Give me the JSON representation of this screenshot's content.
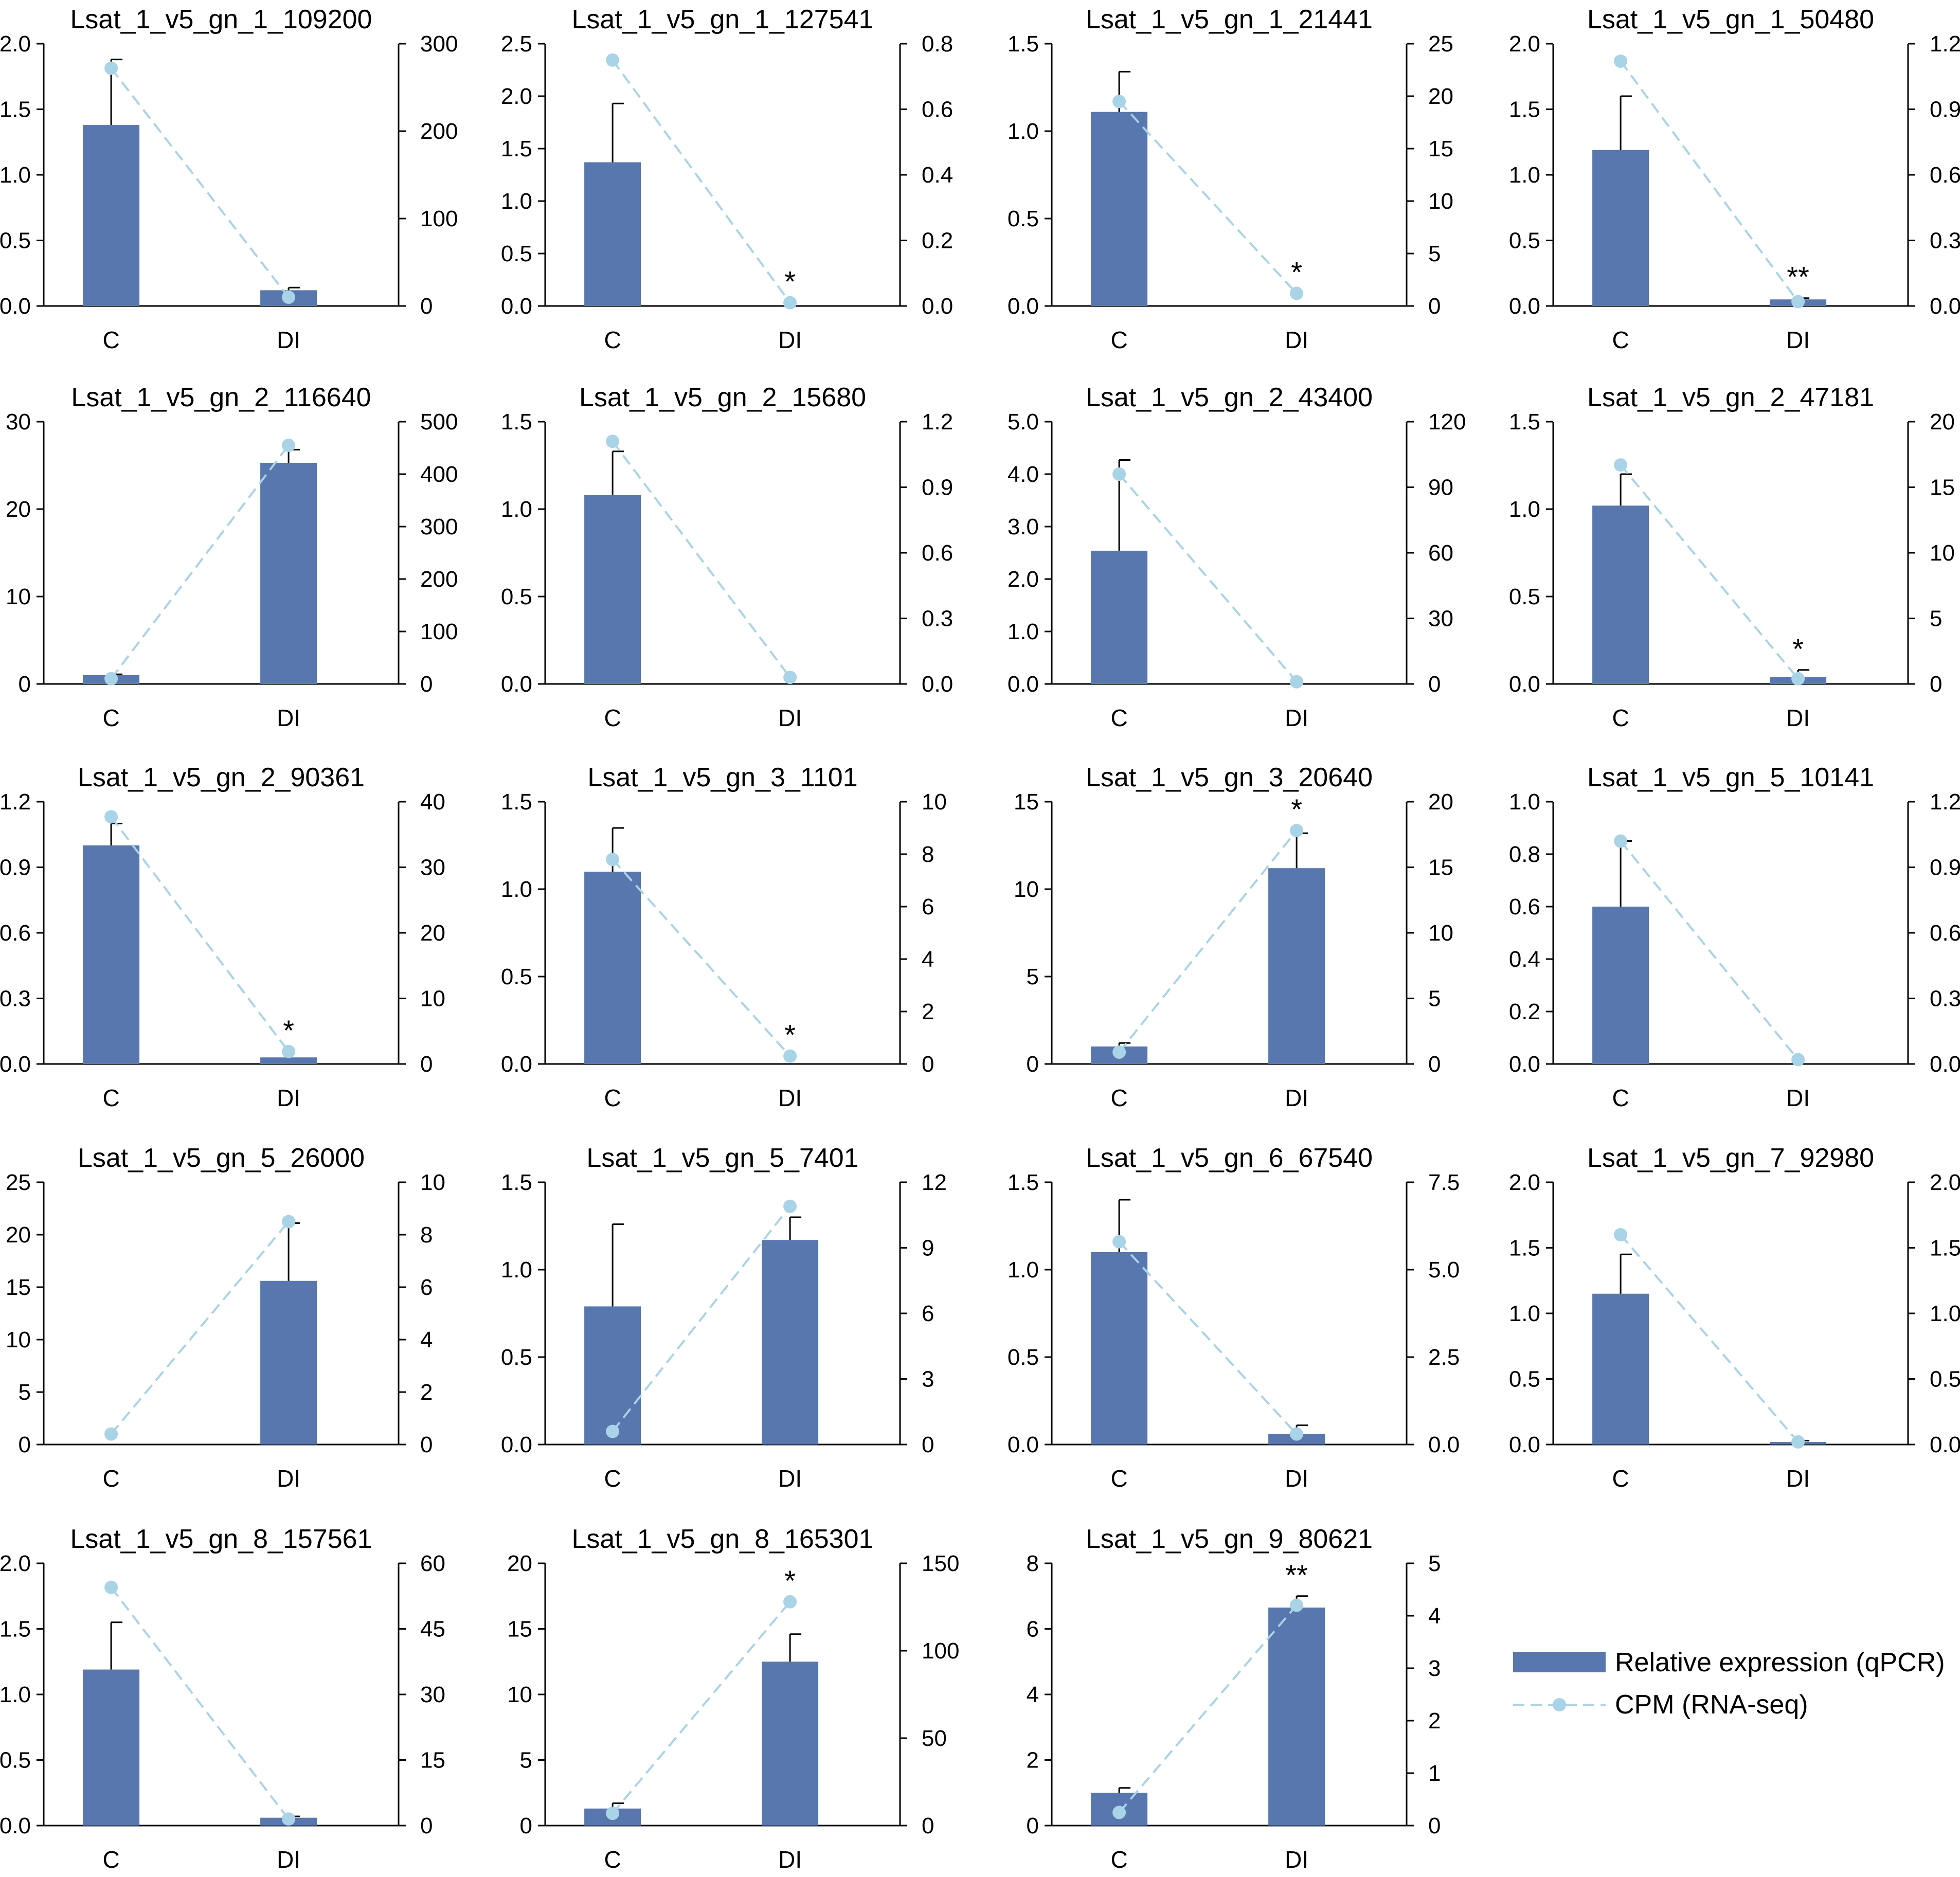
{
  "figure": {
    "categories": [
      "C",
      "DI"
    ],
    "colors": {
      "bar": "#5877AE",
      "line": "#A9D3E7",
      "axis": "#000000",
      "text": "#000000"
    },
    "legend": {
      "bar_label": "Relative expression (qPCR)",
      "line_label": "CPM (RNA-seq)"
    }
  },
  "chart_data": [
    {
      "type": "bar+line",
      "title": "Lsat_1_v5_gn_1_109200",
      "categories": [
        "C",
        "DI"
      ],
      "series": [
        {
          "name": "Relative expression (qPCR)",
          "axis": "left",
          "values": [
            1.38,
            0.12
          ],
          "errors": [
            0.5,
            0.02
          ]
        },
        {
          "name": "CPM (RNA-seq)",
          "axis": "right",
          "values": [
            272,
            10
          ]
        }
      ],
      "annotations": [
        "",
        ""
      ],
      "ylim_left": [
        0,
        2.0
      ],
      "yticks_left": [
        "0.0",
        "0.5",
        "1.0",
        "1.5",
        "2.0"
      ],
      "ylim_right": [
        0,
        300
      ],
      "yticks_right": [
        "0",
        "100",
        "200",
        "300"
      ]
    },
    {
      "type": "bar+line",
      "title": "Lsat_1_v5_gn_1_127541",
      "categories": [
        "C",
        "DI"
      ],
      "series": [
        {
          "name": "Relative expression (qPCR)",
          "axis": "left",
          "values": [
            1.37,
            0.0
          ],
          "errors": [
            0.56,
            0.0
          ]
        },
        {
          "name": "CPM (RNA-seq)",
          "axis": "right",
          "values": [
            0.75,
            0.01
          ]
        }
      ],
      "annotations": [
        "",
        "*"
      ],
      "ylim_left": [
        0,
        2.5
      ],
      "yticks_left": [
        "0.0",
        "0.5",
        "1.0",
        "1.5",
        "2.0",
        "2.5"
      ],
      "ylim_right": [
        0,
        0.8
      ],
      "yticks_right": [
        "0.0",
        "0.2",
        "0.4",
        "0.6",
        "0.8"
      ]
    },
    {
      "type": "bar+line",
      "title": "Lsat_1_v5_gn_1_21441",
      "categories": [
        "C",
        "DI"
      ],
      "series": [
        {
          "name": "Relative expression (qPCR)",
          "axis": "left",
          "values": [
            1.11,
            0.0
          ],
          "errors": [
            0.23,
            0.0
          ]
        },
        {
          "name": "CPM (RNA-seq)",
          "axis": "right",
          "values": [
            19.5,
            1.2
          ]
        }
      ],
      "annotations": [
        "",
        "*"
      ],
      "ylim_left": [
        0,
        1.5
      ],
      "yticks_left": [
        "0.0",
        "0.5",
        "1.0",
        "1.5"
      ],
      "ylim_right": [
        0,
        25
      ],
      "yticks_right": [
        "0",
        "5",
        "10",
        "15",
        "20",
        "25"
      ]
    },
    {
      "type": "bar+line",
      "title": "Lsat_1_v5_gn_1_50480",
      "categories": [
        "C",
        "DI"
      ],
      "series": [
        {
          "name": "Relative expression (qPCR)",
          "axis": "left",
          "values": [
            1.19,
            0.05
          ],
          "errors": [
            0.41,
            0.01
          ]
        },
        {
          "name": "CPM (RNA-seq)",
          "axis": "right",
          "values": [
            1.12,
            0.02
          ]
        }
      ],
      "annotations": [
        "",
        "**"
      ],
      "ylim_left": [
        0,
        2.0
      ],
      "yticks_left": [
        "0.0",
        "0.5",
        "1.0",
        "1.5",
        "2.0"
      ],
      "ylim_right": [
        0,
        1.2
      ],
      "yticks_right": [
        "0.0",
        "0.3",
        "0.6",
        "0.9",
        "1.2"
      ]
    },
    {
      "type": "bar+line",
      "title": "Lsat_1_v5_gn_2_116640",
      "categories": [
        "C",
        "DI"
      ],
      "series": [
        {
          "name": "Relative expression (qPCR)",
          "axis": "left",
          "values": [
            1.0,
            25.3
          ],
          "errors": [
            0.1,
            1.5
          ]
        },
        {
          "name": "CPM (RNA-seq)",
          "axis": "right",
          "values": [
            10,
            455
          ]
        }
      ],
      "annotations": [
        "",
        ""
      ],
      "ylim_left": [
        0,
        30
      ],
      "yticks_left": [
        "0",
        "10",
        "20",
        "30"
      ],
      "ylim_right": [
        0,
        500
      ],
      "yticks_right": [
        "0",
        "100",
        "200",
        "300",
        "400",
        "500"
      ]
    },
    {
      "type": "bar+line",
      "title": "Lsat_1_v5_gn_2_15680",
      "categories": [
        "C",
        "DI"
      ],
      "series": [
        {
          "name": "Relative expression (qPCR)",
          "axis": "left",
          "values": [
            1.08,
            0.0
          ],
          "errors": [
            0.25,
            0.0
          ]
        },
        {
          "name": "CPM (RNA-seq)",
          "axis": "right",
          "values": [
            1.11,
            0.03
          ]
        }
      ],
      "annotations": [
        "",
        ""
      ],
      "ylim_left": [
        0,
        1.5
      ],
      "yticks_left": [
        "0.0",
        "0.5",
        "1.0",
        "1.5"
      ],
      "ylim_right": [
        0,
        1.2
      ],
      "yticks_right": [
        "0.0",
        "0.3",
        "0.6",
        "0.9",
        "1.2"
      ]
    },
    {
      "type": "bar+line",
      "title": "Lsat_1_v5_gn_2_43400",
      "categories": [
        "C",
        "DI"
      ],
      "series": [
        {
          "name": "Relative expression (qPCR)",
          "axis": "left",
          "values": [
            2.54,
            0.0
          ],
          "errors": [
            1.73,
            0.0
          ]
        },
        {
          "name": "CPM (RNA-seq)",
          "axis": "right",
          "values": [
            96,
            1
          ]
        }
      ],
      "annotations": [
        "",
        ""
      ],
      "ylim_left": [
        0,
        5.0
      ],
      "yticks_left": [
        "0.0",
        "1.0",
        "2.0",
        "3.0",
        "4.0",
        "5.0"
      ],
      "ylim_right": [
        0,
        120
      ],
      "yticks_right": [
        "0",
        "30",
        "60",
        "90",
        "120"
      ]
    },
    {
      "type": "bar+line",
      "title": "Lsat_1_v5_gn_2_47181",
      "categories": [
        "C",
        "DI"
      ],
      "series": [
        {
          "name": "Relative expression (qPCR)",
          "axis": "left",
          "values": [
            1.02,
            0.04
          ],
          "errors": [
            0.18,
            0.04
          ]
        },
        {
          "name": "CPM (RNA-seq)",
          "axis": "right",
          "values": [
            16.7,
            0.4
          ]
        }
      ],
      "annotations": [
        "",
        "*"
      ],
      "ylim_left": [
        0,
        1.5
      ],
      "yticks_left": [
        "0.0",
        "0.5",
        "1.0",
        "1.5"
      ],
      "ylim_right": [
        0,
        20
      ],
      "yticks_right": [
        "0",
        "5",
        "10",
        "15",
        "20"
      ]
    },
    {
      "type": "bar+line",
      "title": "Lsat_1_v5_gn_2_90361",
      "categories": [
        "C",
        "DI"
      ],
      "series": [
        {
          "name": "Relative expression (qPCR)",
          "axis": "left",
          "values": [
            1.0,
            0.03
          ],
          "errors": [
            0.1,
            0.0
          ]
        },
        {
          "name": "CPM (RNA-seq)",
          "axis": "right",
          "values": [
            37.7,
            1.9
          ]
        }
      ],
      "annotations": [
        "",
        "*"
      ],
      "ylim_left": [
        0,
        1.2
      ],
      "yticks_left": [
        "0.0",
        "0.3",
        "0.6",
        "0.9",
        "1.2"
      ],
      "ylim_right": [
        0,
        40
      ],
      "yticks_right": [
        "0",
        "10",
        "20",
        "30",
        "40"
      ]
    },
    {
      "type": "bar+line",
      "title": "Lsat_1_v5_gn_3_1101",
      "categories": [
        "C",
        "DI"
      ],
      "series": [
        {
          "name": "Relative expression (qPCR)",
          "axis": "left",
          "values": [
            1.1,
            0.0
          ],
          "errors": [
            0.25,
            0.0
          ]
        },
        {
          "name": "CPM (RNA-seq)",
          "axis": "right",
          "values": [
            7.8,
            0.3
          ]
        }
      ],
      "annotations": [
        "",
        "*"
      ],
      "ylim_left": [
        0,
        1.5
      ],
      "yticks_left": [
        "0.0",
        "0.5",
        "1.0",
        "1.5"
      ],
      "ylim_right": [
        0,
        10
      ],
      "yticks_right": [
        "0",
        "2",
        "4",
        "6",
        "8",
        "10"
      ]
    },
    {
      "type": "bar+line",
      "title": "Lsat_1_v5_gn_3_20640",
      "categories": [
        "C",
        "DI"
      ],
      "series": [
        {
          "name": "Relative expression (qPCR)",
          "axis": "left",
          "values": [
            1.0,
            11.2
          ],
          "errors": [
            0.2,
            2.0
          ]
        },
        {
          "name": "CPM (RNA-seq)",
          "axis": "right",
          "values": [
            0.9,
            17.8
          ]
        }
      ],
      "annotations": [
        "",
        "*"
      ],
      "ylim_left": [
        0,
        15
      ],
      "yticks_left": [
        "0",
        "5",
        "10",
        "15"
      ],
      "ylim_right": [
        0,
        20
      ],
      "yticks_right": [
        "0",
        "5",
        "10",
        "15",
        "20"
      ]
    },
    {
      "type": "bar+line",
      "title": "Lsat_1_v5_gn_5_10141",
      "categories": [
        "C",
        "DI"
      ],
      "series": [
        {
          "name": "Relative expression (qPCR)",
          "axis": "left",
          "values": [
            0.6,
            0.0
          ],
          "errors": [
            0.25,
            0.0
          ]
        },
        {
          "name": "CPM (RNA-seq)",
          "axis": "right",
          "values": [
            1.02,
            0.02
          ]
        }
      ],
      "annotations": [
        "",
        ""
      ],
      "ylim_left": [
        0,
        1.0
      ],
      "yticks_left": [
        "0.0",
        "0.2",
        "0.4",
        "0.6",
        "0.8",
        "1.0"
      ],
      "ylim_right": [
        0,
        1.2
      ],
      "yticks_right": [
        "0.0",
        "0.3",
        "0.6",
        "0.9",
        "1.2"
      ]
    },
    {
      "type": "bar+line",
      "title": "Lsat_1_v5_gn_5_26000",
      "categories": [
        "C",
        "DI"
      ],
      "series": [
        {
          "name": "Relative expression (qPCR)",
          "axis": "left",
          "values": [
            0.0,
            15.6
          ],
          "errors": [
            0.0,
            5.5
          ]
        },
        {
          "name": "CPM (RNA-seq)",
          "axis": "right",
          "values": [
            0.4,
            8.5
          ]
        }
      ],
      "annotations": [
        "",
        ""
      ],
      "ylim_left": [
        0,
        25
      ],
      "yticks_left": [
        "0",
        "5",
        "10",
        "15",
        "20",
        "25"
      ],
      "ylim_right": [
        0,
        10
      ],
      "yticks_right": [
        "0",
        "2",
        "4",
        "6",
        "8",
        "10"
      ]
    },
    {
      "type": "bar+line",
      "title": "Lsat_1_v5_gn_5_7401",
      "categories": [
        "C",
        "DI"
      ],
      "series": [
        {
          "name": "Relative expression (qPCR)",
          "axis": "left",
          "values": [
            0.79,
            1.17
          ],
          "errors": [
            0.47,
            0.13
          ]
        },
        {
          "name": "CPM (RNA-seq)",
          "axis": "right",
          "values": [
            0.6,
            10.9
          ]
        }
      ],
      "annotations": [
        "",
        ""
      ],
      "ylim_left": [
        0,
        1.5
      ],
      "yticks_left": [
        "0.0",
        "0.5",
        "1.0",
        "1.5"
      ],
      "ylim_right": [
        0,
        12
      ],
      "yticks_right": [
        "0",
        "3",
        "6",
        "9",
        "12"
      ]
    },
    {
      "type": "bar+line",
      "title": "Lsat_1_v5_gn_6_67540",
      "categories": [
        "C",
        "DI"
      ],
      "series": [
        {
          "name": "Relative expression (qPCR)",
          "axis": "left",
          "values": [
            1.1,
            0.06
          ],
          "errors": [
            0.3,
            0.05
          ]
        },
        {
          "name": "CPM (RNA-seq)",
          "axis": "right",
          "values": [
            5.8,
            0.3
          ]
        }
      ],
      "annotations": [
        "",
        ""
      ],
      "ylim_left": [
        0,
        1.5
      ],
      "yticks_left": [
        "0.0",
        "0.5",
        "1.0",
        "1.5"
      ],
      "ylim_right": [
        0,
        7.5
      ],
      "yticks_right": [
        "0.0",
        "2.5",
        "5.0",
        "7.5"
      ]
    },
    {
      "type": "bar+line",
      "title": "Lsat_1_v5_gn_7_92980",
      "categories": [
        "C",
        "DI"
      ],
      "series": [
        {
          "name": "Relative expression (qPCR)",
          "axis": "left",
          "values": [
            1.15,
            0.02
          ],
          "errors": [
            0.3,
            0.01
          ]
        },
        {
          "name": "CPM (RNA-seq)",
          "axis": "right",
          "values": [
            1.6,
            0.02
          ]
        }
      ],
      "annotations": [
        "",
        ""
      ],
      "ylim_left": [
        0,
        2.0
      ],
      "yticks_left": [
        "0.0",
        "0.5",
        "1.0",
        "1.5",
        "2.0"
      ],
      "ylim_right": [
        0,
        2.0
      ],
      "yticks_right": [
        "0.0",
        "0.5",
        "1.0",
        "1.5",
        "2.0"
      ]
    },
    {
      "type": "bar+line",
      "title": "Lsat_1_v5_gn_8_157561",
      "categories": [
        "C",
        "DI"
      ],
      "series": [
        {
          "name": "Relative expression (qPCR)",
          "axis": "left",
          "values": [
            1.19,
            0.06
          ],
          "errors": [
            0.36,
            0.01
          ]
        },
        {
          "name": "CPM (RNA-seq)",
          "axis": "right",
          "values": [
            54.5,
            1.5
          ]
        }
      ],
      "annotations": [
        "",
        ""
      ],
      "ylim_left": [
        0,
        2.0
      ],
      "yticks_left": [
        "0.0",
        "0.5",
        "1.0",
        "1.5",
        "2.0"
      ],
      "ylim_right": [
        0,
        60
      ],
      "yticks_right": [
        "0",
        "15",
        "30",
        "45",
        "60"
      ]
    },
    {
      "type": "bar+line",
      "title": "Lsat_1_v5_gn_8_165301",
      "categories": [
        "C",
        "DI"
      ],
      "series": [
        {
          "name": "Relative expression (qPCR)",
          "axis": "left",
          "values": [
            1.3,
            12.5
          ],
          "errors": [
            0.4,
            2.1
          ]
        },
        {
          "name": "CPM (RNA-seq)",
          "axis": "right",
          "values": [
            7,
            128
          ]
        }
      ],
      "annotations": [
        "",
        "*"
      ],
      "ylim_left": [
        0,
        20
      ],
      "yticks_left": [
        "0",
        "5",
        "10",
        "15",
        "20"
      ],
      "ylim_right": [
        0,
        150
      ],
      "yticks_right": [
        "0",
        "50",
        "100",
        "150"
      ]
    },
    {
      "type": "bar+line",
      "title": "Lsat_1_v5_gn_9_80621",
      "categories": [
        "C",
        "DI"
      ],
      "series": [
        {
          "name": "Relative expression (qPCR)",
          "axis": "left",
          "values": [
            1.0,
            6.65
          ],
          "errors": [
            0.15,
            0.35
          ]
        },
        {
          "name": "CPM (RNA-seq)",
          "axis": "right",
          "values": [
            0.25,
            4.2
          ]
        }
      ],
      "annotations": [
        "",
        "**"
      ],
      "ylim_left": [
        0,
        8
      ],
      "yticks_left": [
        "0",
        "2",
        "4",
        "6",
        "8"
      ],
      "ylim_right": [
        0,
        5
      ],
      "yticks_right": [
        "0",
        "1",
        "2",
        "3",
        "4",
        "5"
      ]
    }
  ]
}
